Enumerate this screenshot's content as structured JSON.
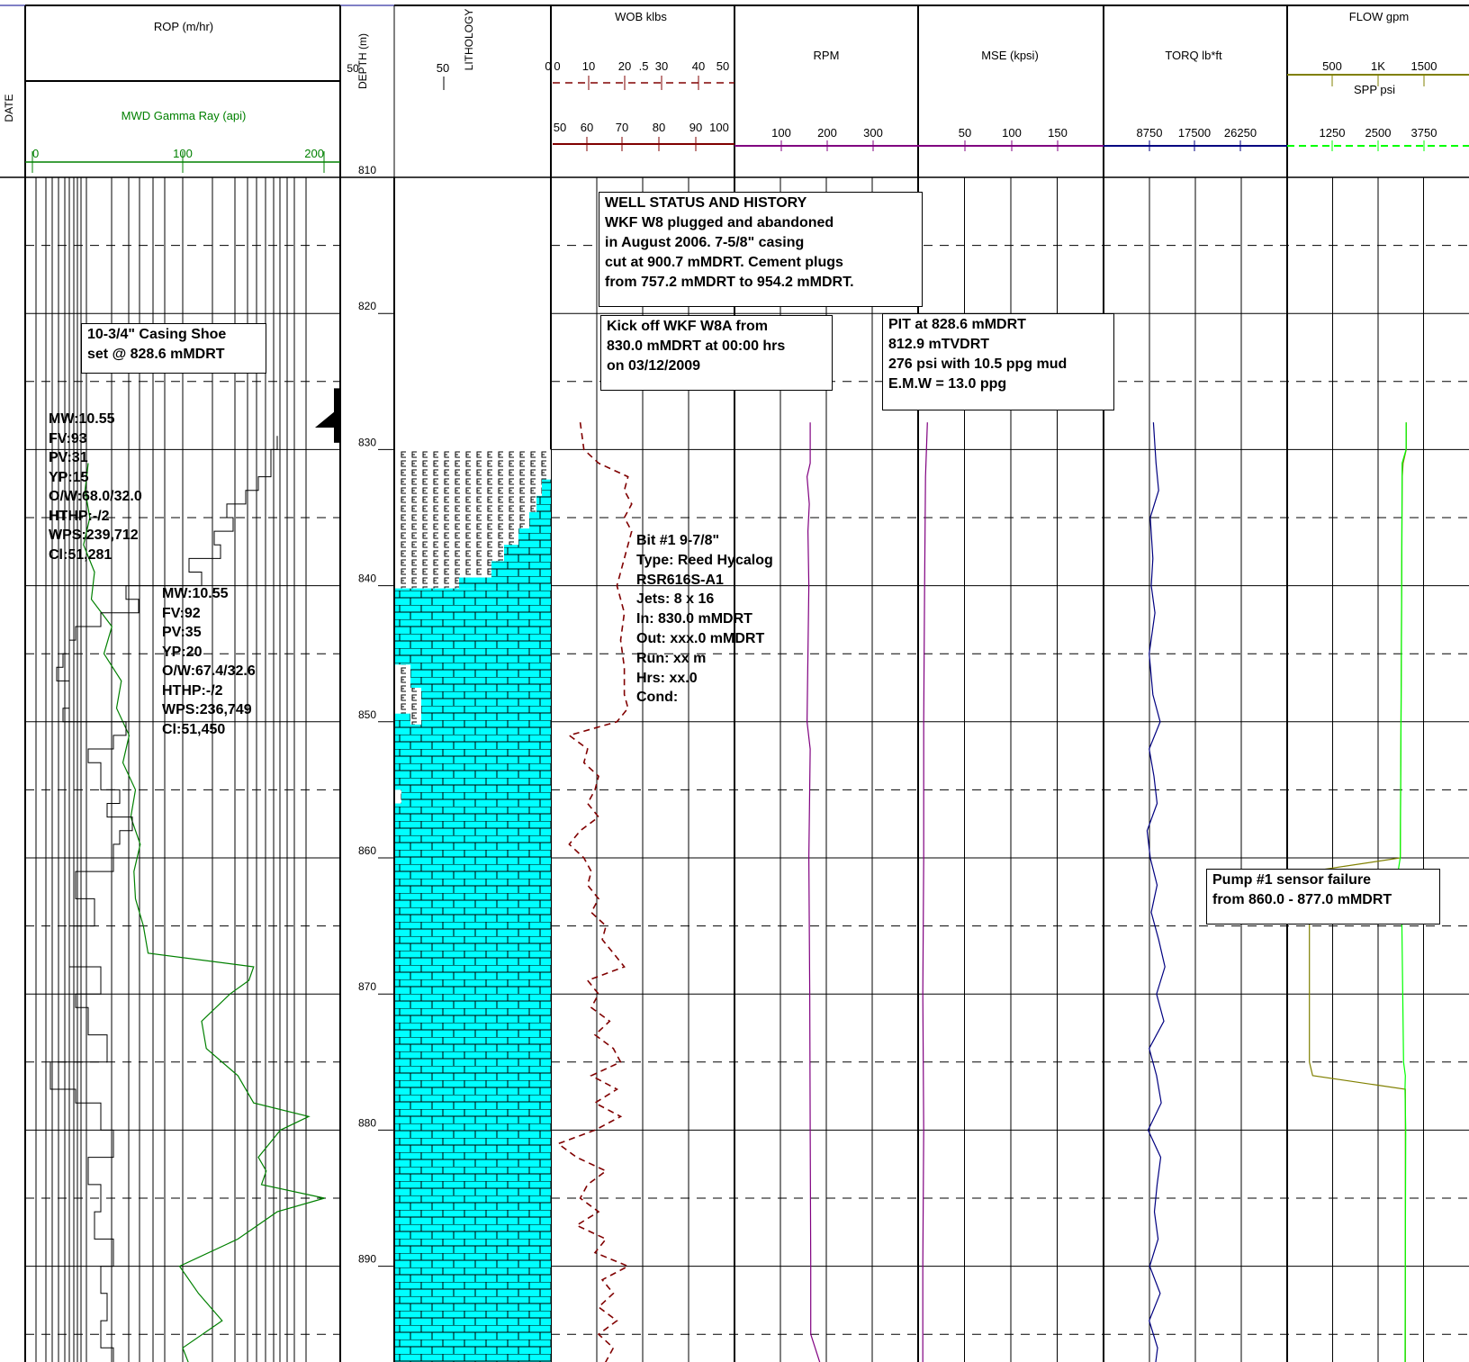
{
  "header": {
    "date_label": "DATE",
    "rop_label": "ROP (m/hr)",
    "gamma_label": "MWD Gamma Ray (api)",
    "gamma_ticks": [
      "0",
      "100",
      "200"
    ],
    "depth_label": "DEPTH (m)",
    "rop_scale_left": "50",
    "rop_scale_right": "0",
    "lithology_label": "LITHOLOGY",
    "lith_scale_left": "50",
    "wob_label": "WOB klbs",
    "wob_ticks_top": [
      "0",
      "10",
      "20",
      ".5",
      "30",
      "40",
      "50"
    ],
    "wob_ticks_bottom": [
      "50",
      "60",
      "70",
      "80",
      "90",
      "100"
    ],
    "rpm_label": "RPM",
    "rpm_ticks": [
      "100",
      "200",
      "300"
    ],
    "mse_label": "MSE (kpsi)",
    "mse_ticks": [
      "50",
      "100",
      "150"
    ],
    "torq_label": "TORQ lb*ft",
    "torq_ticks": [
      "8750",
      "17500",
      "26250"
    ],
    "flow_label": "FLOW gpm",
    "flow_ticks": [
      "500",
      "1K",
      "1500"
    ],
    "spp_label": "SPP psi",
    "spp_ticks": [
      "1250",
      "2500",
      "3750"
    ]
  },
  "depth_ticks": [
    "810",
    "820",
    "830",
    "840",
    "850",
    "860",
    "870",
    "880",
    "890"
  ],
  "annotations": {
    "well_status": [
      "WELL STATUS AND HISTORY",
      "WKF W8 plugged and abandoned",
      "in August 2006. 7-5/8\" casing",
      "cut at 900.7 mMDRT. Cement plugs",
      "from 757.2 mMDRT to 954.2 mMDRT."
    ],
    "casing_shoe": [
      "10-3/4\" Casing Shoe",
      "set @ 828.6 mMDRT"
    ],
    "kick_off": [
      "Kick off WKF W8A from",
      "830.0 mMDRT at 00:00 hrs",
      "on 03/12/2009"
    ],
    "pit": [
      "PIT at 828.6 mMDRT",
      "812.9 mTVDRT",
      "276 psi with 10.5 ppg mud",
      "E.M.W = 13.0 ppg"
    ],
    "mud1": [
      "MW:10.55",
      "FV:93",
      "PV:31",
      "YP:15",
      "O/W:68.0/32.0",
      "HTHP:-/2",
      "WPS:239,712",
      "Cl:51,281"
    ],
    "mud2": [
      "MW:10.55",
      "FV:92",
      "PV:35",
      "YP:20",
      "O/W:67.4/32.6",
      "HTHP:-/2",
      "WPS:236,749",
      "Cl:51,450"
    ],
    "bit": [
      "Bit #1 9-7/8\"",
      "Type: Reed Hycalog",
      "RSR616S-A1",
      "Jets: 8 x 16",
      "In:  830.0 mMDRT",
      "Out: xxx.0 mMDRT",
      "Run: xx m",
      "Hrs: xx.0",
      "Cond:"
    ],
    "pump": [
      "Pump #1 sensor failure",
      "from 860.0 - 877.0 mMDRT"
    ]
  },
  "colors": {
    "gamma": "#008000",
    "rop": "#000000",
    "wob": "#800000",
    "rpm": "#800080",
    "mse": "#800080",
    "torq": "#000080",
    "flow": "#808000",
    "spp": "#00ff00",
    "limestone": "#00ffff",
    "header_blue": "#00008b"
  },
  "chart_data": {
    "type": "line",
    "depth_range_m": [
      810,
      897.5
    ],
    "depth_unit": "m",
    "tracks": [
      {
        "name": "MWD Gamma Ray (api)",
        "x_range": [
          0,
          200
        ],
        "points": [
          [
            831,
            40
          ],
          [
            833,
            38
          ],
          [
            835,
            41
          ],
          [
            837,
            37
          ],
          [
            839,
            44
          ],
          [
            841,
            42
          ],
          [
            843,
            55
          ],
          [
            845,
            50
          ],
          [
            847,
            61
          ],
          [
            849,
            58
          ],
          [
            851,
            66
          ],
          [
            853,
            62
          ],
          [
            855,
            70
          ],
          [
            857,
            67
          ],
          [
            859,
            73
          ],
          [
            861,
            69
          ],
          [
            863,
            70
          ],
          [
            865,
            75
          ],
          [
            867,
            78
          ],
          [
            868,
            145
          ],
          [
            869,
            142
          ],
          [
            870,
            130
          ],
          [
            872,
            112
          ],
          [
            874,
            115
          ],
          [
            876,
            135
          ],
          [
            878,
            145
          ],
          [
            879,
            180
          ],
          [
            880,
            162
          ],
          [
            882,
            148
          ],
          [
            883,
            153
          ],
          [
            884,
            150
          ],
          [
            885,
            190
          ],
          [
            886,
            160
          ],
          [
            888,
            135
          ],
          [
            890,
            98
          ],
          [
            892,
            110
          ],
          [
            894,
            125
          ],
          [
            896,
            100
          ],
          [
            897.5,
            105
          ]
        ]
      },
      {
        "name": "ROP (m/hr)",
        "x_range": [
          50,
          0
        ],
        "step": true,
        "points": [
          [
            829,
            10
          ],
          [
            830,
            11
          ],
          [
            831,
            11
          ],
          [
            832,
            13
          ],
          [
            833,
            15
          ],
          [
            834,
            18
          ],
          [
            835,
            17
          ],
          [
            836,
            20
          ],
          [
            837,
            19
          ],
          [
            838,
            24
          ],
          [
            839,
            22
          ],
          [
            840,
            34
          ],
          [
            841,
            32
          ],
          [
            842,
            38
          ],
          [
            843,
            42
          ],
          [
            844,
            43
          ],
          [
            845,
            44
          ],
          [
            846,
            45
          ],
          [
            847,
            43
          ],
          [
            849,
            44
          ],
          [
            850,
            34
          ],
          [
            851,
            36
          ],
          [
            852,
            40
          ],
          [
            853,
            38
          ],
          [
            855,
            35
          ],
          [
            856,
            37
          ],
          [
            857,
            33
          ],
          [
            858,
            35
          ],
          [
            859,
            36
          ],
          [
            861,
            42
          ],
          [
            863,
            39
          ],
          [
            865,
            43
          ],
          [
            868,
            38
          ],
          [
            870,
            42
          ],
          [
            871,
            40
          ],
          [
            873,
            37
          ],
          [
            875,
            46
          ],
          [
            877,
            42
          ],
          [
            878,
            38
          ],
          [
            879,
            38
          ],
          [
            880,
            36
          ],
          [
            882,
            40
          ],
          [
            884,
            38
          ],
          [
            886,
            39
          ],
          [
            888,
            36
          ],
          [
            890,
            38
          ],
          [
            892,
            37
          ],
          [
            894,
            38
          ],
          [
            896,
            36
          ],
          [
            897.5,
            35
          ]
        ]
      },
      {
        "name": "WOB klbs",
        "x_range": [
          0,
          50
        ],
        "points": [
          [
            828,
            8
          ],
          [
            830,
            9
          ],
          [
            831,
            13
          ],
          [
            832,
            21
          ],
          [
            833,
            20
          ],
          [
            834,
            22
          ],
          [
            835,
            20
          ],
          [
            836,
            22
          ],
          [
            837,
            21
          ],
          [
            838,
            20
          ],
          [
            840,
            18
          ],
          [
            842,
            20
          ],
          [
            844,
            19
          ],
          [
            846,
            20
          ],
          [
            848,
            20
          ],
          [
            849,
            21
          ],
          [
            850,
            18
          ],
          [
            851,
            5
          ],
          [
            852,
            10
          ],
          [
            853,
            9
          ],
          [
            854,
            13
          ],
          [
            855,
            12
          ],
          [
            856,
            10
          ],
          [
            857,
            13
          ],
          [
            858,
            8
          ],
          [
            859,
            5
          ],
          [
            860,
            9
          ],
          [
            861,
            11
          ],
          [
            862,
            10
          ],
          [
            863,
            13
          ],
          [
            864,
            11
          ],
          [
            865,
            15
          ],
          [
            866,
            14
          ],
          [
            867,
            17
          ],
          [
            868,
            20
          ],
          [
            869,
            10
          ],
          [
            870,
            13
          ],
          [
            871,
            11
          ],
          [
            872,
            16
          ],
          [
            873,
            12
          ],
          [
            874,
            17
          ],
          [
            875,
            19
          ],
          [
            876,
            11
          ],
          [
            877,
            18
          ],
          [
            878,
            12
          ],
          [
            879,
            19
          ],
          [
            880,
            12
          ],
          [
            881,
            2
          ],
          [
            882,
            7
          ],
          [
            883,
            15
          ],
          [
            884,
            10
          ],
          [
            885,
            8
          ],
          [
            886,
            13
          ],
          [
            887,
            7
          ],
          [
            888,
            15
          ],
          [
            889,
            12
          ],
          [
            890,
            21
          ],
          [
            891,
            14
          ],
          [
            892,
            17
          ],
          [
            893,
            13
          ],
          [
            894,
            18
          ],
          [
            895,
            13
          ],
          [
            896,
            17
          ],
          [
            897.5,
            14
          ]
        ]
      },
      {
        "name": "RPM",
        "x_range": [
          0,
          400
        ],
        "points": [
          [
            828,
            165
          ],
          [
            831,
            165
          ],
          [
            832,
            158
          ],
          [
            834,
            163
          ],
          [
            836,
            160
          ],
          [
            840,
            162
          ],
          [
            845,
            160
          ],
          [
            850,
            158
          ],
          [
            852,
            165
          ],
          [
            860,
            162
          ],
          [
            870,
            164
          ],
          [
            880,
            165
          ],
          [
            890,
            166
          ],
          [
            895,
            166
          ],
          [
            897.5,
            190
          ]
        ]
      },
      {
        "name": "MSE (kpsi)",
        "x_range": [
          0,
          200
        ],
        "points": [
          [
            828,
            10
          ],
          [
            832,
            8
          ],
          [
            840,
            7
          ],
          [
            850,
            6
          ],
          [
            860,
            6
          ],
          [
            870,
            5
          ],
          [
            880,
            6
          ],
          [
            890,
            5
          ],
          [
            897.5,
            5
          ]
        ]
      },
      {
        "name": "TORQ lb*ft",
        "x_range": [
          0,
          35000
        ],
        "points": [
          [
            828,
            9500
          ],
          [
            831,
            10000
          ],
          [
            833,
            10500
          ],
          [
            835,
            8900
          ],
          [
            838,
            9400
          ],
          [
            840,
            9100
          ],
          [
            842,
            9800
          ],
          [
            845,
            8700
          ],
          [
            848,
            9400
          ],
          [
            850,
            10800
          ],
          [
            852,
            8700
          ],
          [
            854,
            9600
          ],
          [
            856,
            10200
          ],
          [
            858,
            8300
          ],
          [
            860,
            8900
          ],
          [
            862,
            10200
          ],
          [
            864,
            9100
          ],
          [
            866,
            10500
          ],
          [
            868,
            11700
          ],
          [
            870,
            10100
          ],
          [
            872,
            11500
          ],
          [
            874,
            8700
          ],
          [
            876,
            10100
          ],
          [
            878,
            11000
          ],
          [
            880,
            8500
          ],
          [
            882,
            10900
          ],
          [
            884,
            10200
          ],
          [
            886,
            9700
          ],
          [
            888,
            10400
          ],
          [
            890,
            8800
          ],
          [
            892,
            10800
          ],
          [
            894,
            8700
          ],
          [
            896,
            10300
          ],
          [
            897.5,
            9800
          ]
        ]
      },
      {
        "name": "FLOW gpm",
        "x_range": [
          0,
          2000
        ],
        "points": [
          [
            828,
            1310
          ],
          [
            830,
            1310
          ],
          [
            831,
            1275
          ],
          [
            832,
            1265
          ],
          [
            860,
            1245
          ],
          [
            861,
            245
          ],
          [
            862,
            245
          ],
          [
            875,
            245
          ],
          [
            876,
            280
          ],
          [
            877,
            1300
          ],
          [
            878,
            1300
          ],
          [
            897.5,
            1300
          ]
        ]
      },
      {
        "name": "SPP psi",
        "x_range": [
          0,
          5000
        ],
        "points": [
          [
            828,
            3270
          ],
          [
            830,
            3270
          ],
          [
            831,
            3160
          ],
          [
            845,
            3140
          ],
          [
            860,
            3110
          ],
          [
            861,
            3050
          ],
          [
            862,
            3140
          ],
          [
            875,
            3200
          ],
          [
            876,
            3250
          ],
          [
            877,
            3240
          ],
          [
            880,
            3260
          ],
          [
            897.5,
            3240
          ]
        ]
      }
    ],
    "lithology": {
      "cement_plug": [
        [
          830,
          832.5
        ],
        [
          832.5,
          838
        ],
        [
          838,
          840
        ],
        [
          846,
          850
        ]
      ],
      "limestone_from": 840
    }
  }
}
